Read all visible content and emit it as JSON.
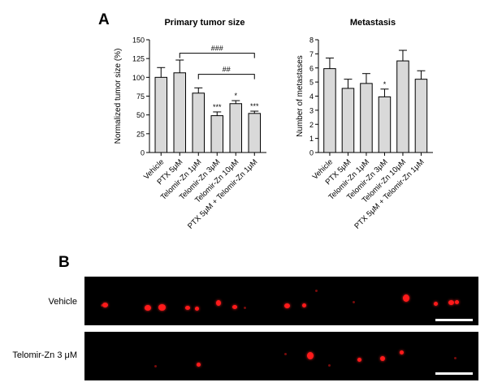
{
  "panels": {
    "a": "A",
    "b": "B"
  },
  "colors": {
    "bar_fill": "#d9d9d9",
    "bar_stroke": "#000000",
    "fluorescence": "#ff1a1a",
    "background": "#000000"
  },
  "chart_data": [
    {
      "type": "bar",
      "title": "Primary tumor size",
      "ylabel": "Normalized tumor size (%)",
      "xlabel": "",
      "ylim": [
        0,
        150
      ],
      "yticks": [
        0,
        25,
        50,
        75,
        100,
        125,
        150
      ],
      "categories": [
        "Vehicle",
        "PTX 5μM",
        "Telomir-Zn 1μM",
        "Telomir-Zn 3μM",
        "Telomir-Zn 10μM",
        "PTX 5μM + Telomir-Zn 1μM"
      ],
      "values": [
        100,
        106,
        79,
        49,
        65,
        52
      ],
      "errors": [
        13,
        17,
        7,
        5,
        4,
        3
      ],
      "significance": [
        "",
        "",
        "",
        "***",
        "*",
        "***"
      ],
      "brackets": [
        {
          "from": 1,
          "to": 5,
          "y": 132,
          "label": "###"
        },
        {
          "from": 2,
          "to": 5,
          "y": 104,
          "label": "##"
        }
      ],
      "grid": false
    },
    {
      "type": "bar",
      "title": "Metastasis",
      "ylabel": "Number of metastases",
      "xlabel": "",
      "ylim": [
        0,
        8
      ],
      "yticks": [
        0,
        1,
        2,
        3,
        4,
        5,
        6,
        7,
        8
      ],
      "categories": [
        "Vehicle",
        "PTX 5μM",
        "Telomir-Zn 1μM",
        "Telomir-Zn 3μM",
        "Telomir-Zn 10μM",
        "PTX 5μM + Telomir-Zn 1μM"
      ],
      "values": [
        5.95,
        4.55,
        4.9,
        3.95,
        6.5,
        5.2
      ],
      "errors": [
        0.75,
        0.65,
        0.7,
        0.55,
        0.75,
        0.6
      ],
      "significance": [
        "",
        "",
        "",
        "*",
        "",
        ""
      ],
      "brackets": [],
      "grid": false
    }
  ],
  "images": {
    "vehicle_label": "Vehicle",
    "telomir_label": "Telomir-Zn 3 μM"
  }
}
